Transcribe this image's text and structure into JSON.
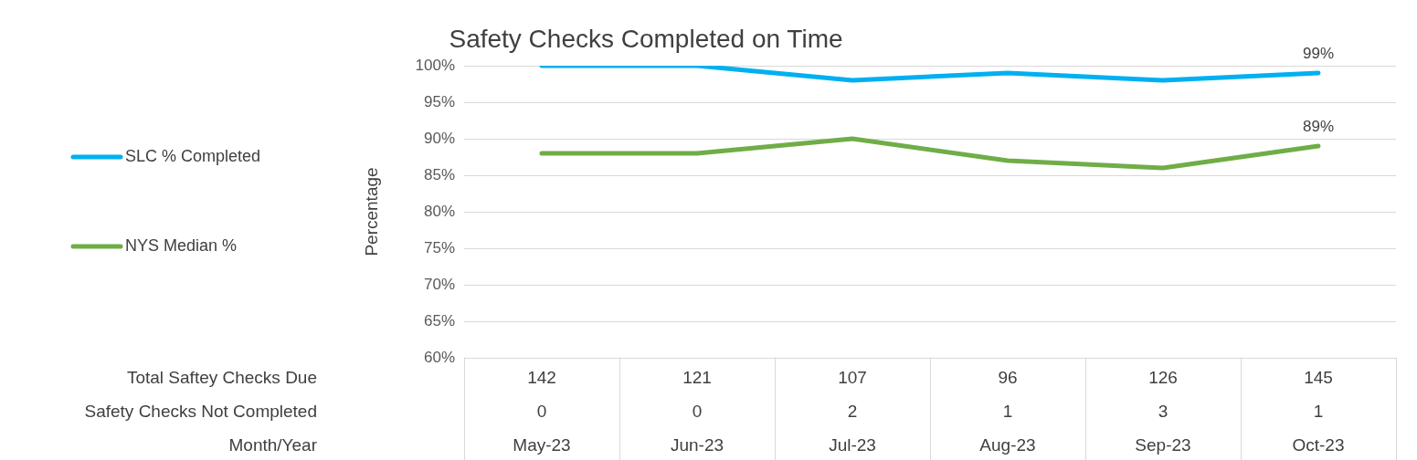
{
  "chart_data": {
    "type": "line",
    "title": "Safety Checks Completed on Time",
    "ylabel": "Percentage",
    "categories": [
      "May-23",
      "Jun-23",
      "Jul-23",
      "Aug-23",
      "Sep-23",
      "Oct-23"
    ],
    "series": [
      {
        "name": "SLC % Completed",
        "color": "#00b0f0",
        "values": [
          100,
          100,
          98,
          99,
          98,
          99
        ],
        "value_labels": [
          null,
          null,
          null,
          null,
          null,
          "99%"
        ]
      },
      {
        "name": "NYS Median %",
        "color": "#70ad47",
        "values": [
          88,
          88,
          90,
          87,
          86,
          89
        ],
        "value_labels": [
          null,
          null,
          null,
          null,
          null,
          "89%"
        ]
      }
    ],
    "ylim": [
      60,
      100
    ],
    "yticks": [
      {
        "value": 60,
        "label": "60%"
      },
      {
        "value": 65,
        "label": "65%"
      },
      {
        "value": 70,
        "label": "70%"
      },
      {
        "value": 75,
        "label": "75%"
      },
      {
        "value": 80,
        "label": "80%"
      },
      {
        "value": 85,
        "label": "85%"
      },
      {
        "value": 90,
        "label": "90%"
      },
      {
        "value": 95,
        "label": "95%"
      },
      {
        "value": 100,
        "label": "100%"
      }
    ],
    "grid": "y",
    "legend": "left",
    "marker": "none",
    "line_style": "solid",
    "annotations": [
      "Total Saftey Checks Due",
      "Safety Checks Not Completed",
      "Month/Year",
      "142",
      "121",
      "107",
      "96",
      "126",
      "145",
      "0",
      "0",
      "2",
      "1",
      "3",
      "1"
    ]
  }
}
